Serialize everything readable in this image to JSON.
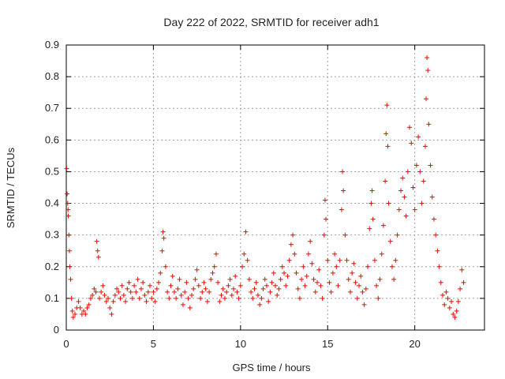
{
  "chart_data": {
    "type": "scatter",
    "title": "Day 222 of 2022, SRMTID for receiver adh1",
    "xlabel": "GPS time / hours",
    "ylabel": "SRMTID / TECUs",
    "xlim": [
      0,
      24
    ],
    "ylim": [
      0,
      0.9
    ],
    "x_ticks": [
      0,
      5,
      10,
      15,
      20
    ],
    "y_ticks": [
      0,
      0.1,
      0.2,
      0.3,
      0.4,
      0.5,
      0.6,
      0.7,
      0.8,
      0.9
    ],
    "grid": true,
    "marker": "+",
    "color": "#ff0000",
    "series": [
      {
        "name": "adh1",
        "points": [
          [
            0.02,
            0.51
          ],
          [
            0.05,
            0.43
          ],
          [
            0.08,
            0.4
          ],
          [
            0.1,
            0.38
          ],
          [
            0.12,
            0.36
          ],
          [
            0.15,
            0.3
          ],
          [
            0.18,
            0.25
          ],
          [
            0.2,
            0.2
          ],
          [
            0.25,
            0.16
          ],
          [
            0.3,
            0.1
          ],
          [
            0.35,
            0.06
          ],
          [
            0.4,
            0.04
          ],
          [
            0.5,
            0.05
          ],
          [
            0.6,
            0.07
          ],
          [
            0.7,
            0.09
          ],
          [
            0.8,
            0.07
          ],
          [
            0.9,
            0.05
          ],
          [
            1.0,
            0.06
          ],
          [
            1.1,
            0.05
          ],
          [
            1.2,
            0.07
          ],
          [
            1.3,
            0.08
          ],
          [
            1.4,
            0.1
          ],
          [
            1.5,
            0.11
          ],
          [
            1.6,
            0.13
          ],
          [
            1.7,
            0.12
          ],
          [
            1.75,
            0.28
          ],
          [
            1.8,
            0.25
          ],
          [
            1.85,
            0.23
          ],
          [
            1.9,
            0.1
          ],
          [
            2.0,
            0.12
          ],
          [
            2.1,
            0.14
          ],
          [
            2.2,
            0.11
          ],
          [
            2.3,
            0.09
          ],
          [
            2.4,
            0.1
          ],
          [
            2.5,
            0.07
          ],
          [
            2.6,
            0.05
          ],
          [
            2.7,
            0.09
          ],
          [
            2.8,
            0.11
          ],
          [
            2.9,
            0.13
          ],
          [
            3.0,
            0.12
          ],
          [
            3.1,
            0.1
          ],
          [
            3.2,
            0.14
          ],
          [
            3.3,
            0.11
          ],
          [
            3.4,
            0.09
          ],
          [
            3.5,
            0.13
          ],
          [
            3.6,
            0.15
          ],
          [
            3.7,
            0.12
          ],
          [
            3.8,
            0.1
          ],
          [
            3.9,
            0.14
          ],
          [
            4.0,
            0.12
          ],
          [
            4.1,
            0.16
          ],
          [
            4.2,
            0.1
          ],
          [
            4.3,
            0.13
          ],
          [
            4.4,
            0.15
          ],
          [
            4.5,
            0.11
          ],
          [
            4.6,
            0.09
          ],
          [
            4.7,
            0.12
          ],
          [
            4.8,
            0.14
          ],
          [
            4.9,
            0.1
          ],
          [
            5.0,
            0.12
          ],
          [
            5.1,
            0.09
          ],
          [
            5.2,
            0.13
          ],
          [
            5.3,
            0.15
          ],
          [
            5.4,
            0.18
          ],
          [
            5.5,
            0.25
          ],
          [
            5.55,
            0.31
          ],
          [
            5.6,
            0.29
          ],
          [
            5.7,
            0.2
          ],
          [
            5.8,
            0.12
          ],
          [
            5.9,
            0.1
          ],
          [
            6.0,
            0.14
          ],
          [
            6.1,
            0.17
          ],
          [
            6.2,
            0.12
          ],
          [
            6.3,
            0.1
          ],
          [
            6.4,
            0.13
          ],
          [
            6.5,
            0.16
          ],
          [
            6.6,
            0.11
          ],
          [
            6.7,
            0.08
          ],
          [
            6.8,
            0.12
          ],
          [
            6.9,
            0.15
          ],
          [
            7.0,
            0.1
          ],
          [
            7.1,
            0.07
          ],
          [
            7.2,
            0.11
          ],
          [
            7.3,
            0.13
          ],
          [
            7.4,
            0.16
          ],
          [
            7.5,
            0.19
          ],
          [
            7.6,
            0.14
          ],
          [
            7.7,
            0.1
          ],
          [
            7.8,
            0.12
          ],
          [
            7.9,
            0.15
          ],
          [
            8.0,
            0.13
          ],
          [
            8.1,
            0.09
          ],
          [
            8.2,
            0.12
          ],
          [
            8.3,
            0.16
          ],
          [
            8.4,
            0.18
          ],
          [
            8.5,
            0.2
          ],
          [
            8.6,
            0.24
          ],
          [
            8.7,
            0.15
          ],
          [
            8.8,
            0.09
          ],
          [
            8.9,
            0.11
          ],
          [
            9.0,
            0.13
          ],
          [
            9.1,
            0.1
          ],
          [
            9.2,
            0.12
          ],
          [
            9.3,
            0.14
          ],
          [
            9.4,
            0.16
          ],
          [
            9.5,
            0.11
          ],
          [
            9.6,
            0.13
          ],
          [
            9.7,
            0.17
          ],
          [
            9.8,
            0.12
          ],
          [
            9.9,
            0.1
          ],
          [
            10.0,
            0.14
          ],
          [
            10.1,
            0.2
          ],
          [
            10.2,
            0.24
          ],
          [
            10.3,
            0.31
          ],
          [
            10.4,
            0.22
          ],
          [
            10.5,
            0.16
          ],
          [
            10.6,
            0.12
          ],
          [
            10.7,
            0.1
          ],
          [
            10.8,
            0.13
          ],
          [
            10.9,
            0.15
          ],
          [
            11.0,
            0.11
          ],
          [
            11.1,
            0.08
          ],
          [
            11.2,
            0.1
          ],
          [
            11.3,
            0.13
          ],
          [
            11.4,
            0.16
          ],
          [
            11.5,
            0.14
          ],
          [
            11.6,
            0.09
          ],
          [
            11.7,
            0.12
          ],
          [
            11.8,
            0.15
          ],
          [
            11.9,
            0.18
          ],
          [
            12.0,
            0.14
          ],
          [
            12.1,
            0.11
          ],
          [
            12.2,
            0.13
          ],
          [
            12.3,
            0.16
          ],
          [
            12.4,
            0.2
          ],
          [
            12.5,
            0.18
          ],
          [
            12.6,
            0.14
          ],
          [
            12.7,
            0.17
          ],
          [
            12.8,
            0.22
          ],
          [
            12.9,
            0.27
          ],
          [
            13.0,
            0.3
          ],
          [
            13.1,
            0.24
          ],
          [
            13.2,
            0.18
          ],
          [
            13.3,
            0.13
          ],
          [
            13.4,
            0.1
          ],
          [
            13.5,
            0.16
          ],
          [
            13.6,
            0.2
          ],
          [
            13.7,
            0.14
          ],
          [
            13.8,
            0.17
          ],
          [
            13.9,
            0.24
          ],
          [
            14.0,
            0.28
          ],
          [
            14.1,
            0.21
          ],
          [
            14.2,
            0.16
          ],
          [
            14.3,
            0.12
          ],
          [
            14.4,
            0.15
          ],
          [
            14.5,
            0.19
          ],
          [
            14.6,
            0.14
          ],
          [
            14.7,
            0.1
          ],
          [
            14.8,
            0.3
          ],
          [
            14.85,
            0.41
          ],
          [
            14.9,
            0.35
          ],
          [
            15.0,
            0.22
          ],
          [
            15.1,
            0.15
          ],
          [
            15.2,
            0.12
          ],
          [
            15.3,
            0.18
          ],
          [
            15.4,
            0.24
          ],
          [
            15.5,
            0.2
          ],
          [
            15.6,
            0.14
          ],
          [
            15.7,
            0.22
          ],
          [
            15.8,
            0.38
          ],
          [
            15.85,
            0.5
          ],
          [
            15.9,
            0.44
          ],
          [
            16.0,
            0.3
          ],
          [
            16.1,
            0.22
          ],
          [
            16.2,
            0.16
          ],
          [
            16.3,
            0.12
          ],
          [
            16.4,
            0.18
          ],
          [
            16.5,
            0.21
          ],
          [
            16.6,
            0.15
          ],
          [
            16.7,
            0.1
          ],
          [
            16.8,
            0.14
          ],
          [
            16.9,
            0.17
          ],
          [
            17.0,
            0.12
          ],
          [
            17.1,
            0.08
          ],
          [
            17.2,
            0.13
          ],
          [
            17.3,
            0.2
          ],
          [
            17.4,
            0.32
          ],
          [
            17.5,
            0.4
          ],
          [
            17.55,
            0.44
          ],
          [
            17.6,
            0.35
          ],
          [
            17.7,
            0.22
          ],
          [
            17.8,
            0.14
          ],
          [
            17.9,
            0.1
          ],
          [
            18.0,
            0.16
          ],
          [
            18.1,
            0.24
          ],
          [
            18.2,
            0.33
          ],
          [
            18.3,
            0.47
          ],
          [
            18.35,
            0.62
          ],
          [
            18.4,
            0.71
          ],
          [
            18.45,
            0.58
          ],
          [
            18.5,
            0.4
          ],
          [
            18.6,
            0.28
          ],
          [
            18.7,
            0.2
          ],
          [
            18.8,
            0.16
          ],
          [
            18.9,
            0.22
          ],
          [
            19.0,
            0.3
          ],
          [
            19.1,
            0.38
          ],
          [
            19.2,
            0.44
          ],
          [
            19.3,
            0.48
          ],
          [
            19.4,
            0.42
          ],
          [
            19.5,
            0.36
          ],
          [
            19.6,
            0.5
          ],
          [
            19.7,
            0.64
          ],
          [
            19.8,
            0.59
          ],
          [
            19.9,
            0.45
          ],
          [
            20.0,
            0.38
          ],
          [
            20.1,
            0.52
          ],
          [
            20.2,
            0.61
          ],
          [
            20.3,
            0.5
          ],
          [
            20.4,
            0.4
          ],
          [
            20.5,
            0.47
          ],
          [
            20.6,
            0.58
          ],
          [
            20.65,
            0.73
          ],
          [
            20.7,
            0.86
          ],
          [
            20.75,
            0.82
          ],
          [
            20.8,
            0.65
          ],
          [
            20.9,
            0.52
          ],
          [
            21.0,
            0.42
          ],
          [
            21.1,
            0.35
          ],
          [
            21.2,
            0.3
          ],
          [
            21.3,
            0.25
          ],
          [
            21.4,
            0.2
          ],
          [
            21.5,
            0.15
          ],
          [
            21.6,
            0.11
          ],
          [
            21.7,
            0.08
          ],
          [
            21.8,
            0.12
          ],
          [
            21.9,
            0.1
          ],
          [
            22.0,
            0.07
          ],
          [
            22.1,
            0.09
          ],
          [
            22.2,
            0.05
          ],
          [
            22.3,
            0.04
          ],
          [
            22.4,
            0.06
          ],
          [
            22.5,
            0.09
          ],
          [
            22.6,
            0.13
          ],
          [
            22.7,
            0.19
          ],
          [
            22.8,
            0.15
          ]
        ]
      }
    ]
  }
}
